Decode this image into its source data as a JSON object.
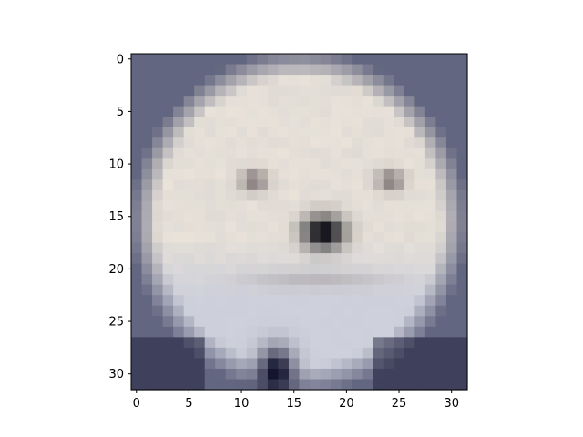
{
  "figure": {
    "x_ticks": [
      "0",
      "5",
      "10",
      "15",
      "20",
      "25",
      "30"
    ],
    "y_ticks": [
      "0",
      "5",
      "10",
      "15",
      "20",
      "25",
      "30"
    ]
  },
  "image": {
    "grid_size": 32,
    "subject": "white fluffy dog face, low-resolution pixelated",
    "colors": {
      "background": "#636680",
      "fur": "#d8d5d0",
      "fur_highlight": "#ede6dc",
      "chest": "#c8ccdc",
      "eye": "#6c6264",
      "nose": "#18181e",
      "dark": "#141430"
    }
  }
}
